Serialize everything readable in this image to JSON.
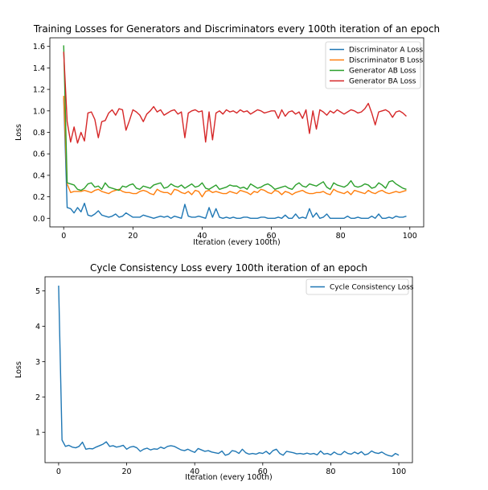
{
  "chart_data": [
    {
      "type": "line",
      "title": "Training Losses for Generators and Discriminators every 100th iteration of an epoch",
      "xlabel": "Iteration (every 100th)",
      "ylabel": "Loss",
      "xlim": [
        -4,
        104
      ],
      "ylim": [
        -0.08,
        1.68
      ],
      "xticks": [
        "0",
        "20",
        "40",
        "60",
        "80",
        "100"
      ],
      "yticks": [
        "0.0",
        "0.2",
        "0.4",
        "0.6",
        "0.8",
        "1.0",
        "1.2",
        "1.4",
        "1.6"
      ],
      "grid": false,
      "legend": "top-right",
      "series": [
        {
          "name": "Discriminator A Loss",
          "color": "#1f77b4",
          "values": [
            1.12,
            0.1,
            0.09,
            0.05,
            0.1,
            0.06,
            0.14,
            0.03,
            0.02,
            0.04,
            0.07,
            0.03,
            0.02,
            0.01,
            0.02,
            0.04,
            0.01,
            0.02,
            0.05,
            0.03,
            0.01,
            0.01,
            0.01,
            0.03,
            0.02,
            0.01,
            0.0,
            0.01,
            0.02,
            0.01,
            0.02,
            0.0,
            0.02,
            0.01,
            0.0,
            0.13,
            0.02,
            0.01,
            0.01,
            0.02,
            0.01,
            0.0,
            0.1,
            0.01,
            0.09,
            0.01,
            0.0,
            0.01,
            0.0,
            0.01,
            0.0,
            0.0,
            0.01,
            0.01,
            0.0,
            0.0,
            0.0,
            0.01,
            0.01,
            0.0,
            0.0,
            0.0,
            0.01,
            0.0,
            0.03,
            0.0,
            0.0,
            0.04,
            0.0,
            0.01,
            0.0,
            0.09,
            0.01,
            0.05,
            0.0,
            0.01,
            0.04,
            0.0,
            0.0,
            0.0,
            0.0,
            0.0,
            0.02,
            0.0,
            0.0,
            0.01,
            0.0,
            0.0,
            0.0,
            0.02,
            0.0,
            0.04,
            0.0,
            0.0,
            0.01,
            0.0,
            0.02,
            0.01,
            0.01,
            0.02
          ]
        },
        {
          "name": "Discriminator B Loss",
          "color": "#ff7f0e",
          "values": [
            1.14,
            0.32,
            0.24,
            0.25,
            0.25,
            0.25,
            0.26,
            0.25,
            0.24,
            0.26,
            0.27,
            0.25,
            0.24,
            0.23,
            0.25,
            0.26,
            0.27,
            0.25,
            0.24,
            0.24,
            0.23,
            0.23,
            0.25,
            0.26,
            0.25,
            0.23,
            0.22,
            0.27,
            0.25,
            0.24,
            0.24,
            0.22,
            0.27,
            0.26,
            0.24,
            0.23,
            0.25,
            0.22,
            0.26,
            0.25,
            0.2,
            0.25,
            0.26,
            0.24,
            0.25,
            0.24,
            0.23,
            0.23,
            0.25,
            0.24,
            0.23,
            0.26,
            0.25,
            0.24,
            0.22,
            0.25,
            0.24,
            0.27,
            0.26,
            0.24,
            0.23,
            0.26,
            0.25,
            0.22,
            0.25,
            0.24,
            0.22,
            0.24,
            0.25,
            0.26,
            0.24,
            0.23,
            0.23,
            0.24,
            0.24,
            0.25,
            0.23,
            0.22,
            0.27,
            0.25,
            0.24,
            0.23,
            0.25,
            0.22,
            0.26,
            0.25,
            0.24,
            0.23,
            0.26,
            0.24,
            0.23,
            0.25,
            0.26,
            0.24,
            0.23,
            0.24,
            0.25,
            0.24,
            0.25,
            0.26
          ]
        },
        {
          "name": "Generator AB Loss",
          "color": "#2ca02c",
          "values": [
            1.61,
            0.33,
            0.32,
            0.31,
            0.27,
            0.26,
            0.28,
            0.32,
            0.33,
            0.29,
            0.3,
            0.27,
            0.33,
            0.29,
            0.28,
            0.27,
            0.26,
            0.3,
            0.29,
            0.31,
            0.32,
            0.28,
            0.27,
            0.3,
            0.29,
            0.28,
            0.31,
            0.32,
            0.33,
            0.28,
            0.29,
            0.32,
            0.3,
            0.29,
            0.31,
            0.28,
            0.3,
            0.32,
            0.29,
            0.3,
            0.33,
            0.28,
            0.27,
            0.29,
            0.31,
            0.27,
            0.28,
            0.29,
            0.31,
            0.3,
            0.3,
            0.28,
            0.29,
            0.27,
            0.32,
            0.3,
            0.28,
            0.29,
            0.31,
            0.32,
            0.3,
            0.27,
            0.28,
            0.29,
            0.3,
            0.28,
            0.27,
            0.31,
            0.33,
            0.3,
            0.29,
            0.32,
            0.31,
            0.3,
            0.32,
            0.34,
            0.29,
            0.27,
            0.33,
            0.31,
            0.3,
            0.29,
            0.31,
            0.35,
            0.3,
            0.29,
            0.3,
            0.32,
            0.31,
            0.28,
            0.29,
            0.33,
            0.31,
            0.28,
            0.34,
            0.35,
            0.32,
            0.3,
            0.28,
            0.27
          ]
        },
        {
          "name": "Generator BA Loss",
          "color": "#d62728",
          "values": [
            1.55,
            0.9,
            0.71,
            0.85,
            0.7,
            0.8,
            0.72,
            0.98,
            0.99,
            0.92,
            0.75,
            0.9,
            0.91,
            0.98,
            1.01,
            0.96,
            1.02,
            1.01,
            0.82,
            0.91,
            1.01,
            0.99,
            0.96,
            0.9,
            0.97,
            1.0,
            1.04,
            0.99,
            1.01,
            0.96,
            0.98,
            1.0,
            1.01,
            0.97,
            0.99,
            0.75,
            0.98,
            1.0,
            1.01,
            0.99,
            1.0,
            0.71,
            0.99,
            0.73,
            0.98,
            1.0,
            0.97,
            1.01,
            0.99,
            1.0,
            0.98,
            1.01,
            0.99,
            1.0,
            0.97,
            0.99,
            1.01,
            1.0,
            0.98,
            0.99,
            1.0,
            1.0,
            0.93,
            1.01,
            0.95,
            0.99,
            1.0,
            0.97,
            0.99,
            0.93,
            1.01,
            0.79,
            1.0,
            0.83,
            1.01,
            0.99,
            0.96,
            1.0,
            0.98,
            1.01,
            0.99,
            0.97,
            0.99,
            1.01,
            1.0,
            0.98,
            0.99,
            1.02,
            1.07,
            0.98,
            0.87,
            0.99,
            1.0,
            1.01,
            0.99,
            0.94,
            0.99,
            1.0,
            0.98,
            0.95
          ]
        }
      ]
    },
    {
      "type": "line",
      "title": "Cycle Consistency Loss every 100th iteration of an epoch",
      "xlabel": "Iteration (every 100th)",
      "ylabel": "Loss",
      "xlim": [
        -4,
        104
      ],
      "ylim": [
        0.14,
        5.4
      ],
      "xticks": [
        "0",
        "20",
        "40",
        "60",
        "80",
        "100"
      ],
      "yticks": [
        "1",
        "2",
        "3",
        "4",
        "5"
      ],
      "grid": false,
      "legend": "top-right",
      "series": [
        {
          "name": "Cycle Consistency Loss",
          "color": "#1f77b4",
          "values": [
            5.15,
            0.78,
            0.6,
            0.63,
            0.58,
            0.56,
            0.6,
            0.72,
            0.52,
            0.54,
            0.53,
            0.58,
            0.62,
            0.66,
            0.73,
            0.6,
            0.62,
            0.58,
            0.6,
            0.63,
            0.52,
            0.58,
            0.6,
            0.56,
            0.46,
            0.52,
            0.55,
            0.5,
            0.53,
            0.52,
            0.58,
            0.54,
            0.6,
            0.62,
            0.6,
            0.55,
            0.5,
            0.48,
            0.52,
            0.47,
            0.43,
            0.54,
            0.5,
            0.46,
            0.48,
            0.44,
            0.42,
            0.4,
            0.47,
            0.35,
            0.38,
            0.48,
            0.46,
            0.4,
            0.52,
            0.42,
            0.38,
            0.4,
            0.38,
            0.42,
            0.4,
            0.46,
            0.38,
            0.48,
            0.52,
            0.4,
            0.35,
            0.46,
            0.44,
            0.42,
            0.39,
            0.4,
            0.38,
            0.41,
            0.38,
            0.4,
            0.36,
            0.47,
            0.38,
            0.4,
            0.36,
            0.44,
            0.38,
            0.37,
            0.46,
            0.4,
            0.38,
            0.44,
            0.39,
            0.45,
            0.36,
            0.39,
            0.47,
            0.42,
            0.4,
            0.44,
            0.38,
            0.34,
            0.32,
            0.4,
            0.35
          ]
        }
      ]
    }
  ]
}
